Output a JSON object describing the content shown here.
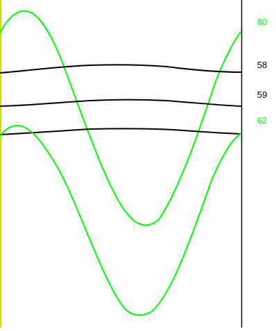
{
  "traces": [
    {
      "label": "60",
      "color": "#00ff00"
    },
    {
      "label": "58",
      "color": "#000000"
    },
    {
      "label": "59",
      "color": "#000000"
    },
    {
      "label": "62",
      "color": "#00ff00"
    }
  ],
  "colors": {
    "left_edge": "#d8d800",
    "frame": "#000000",
    "background": "#ffffff"
  }
}
